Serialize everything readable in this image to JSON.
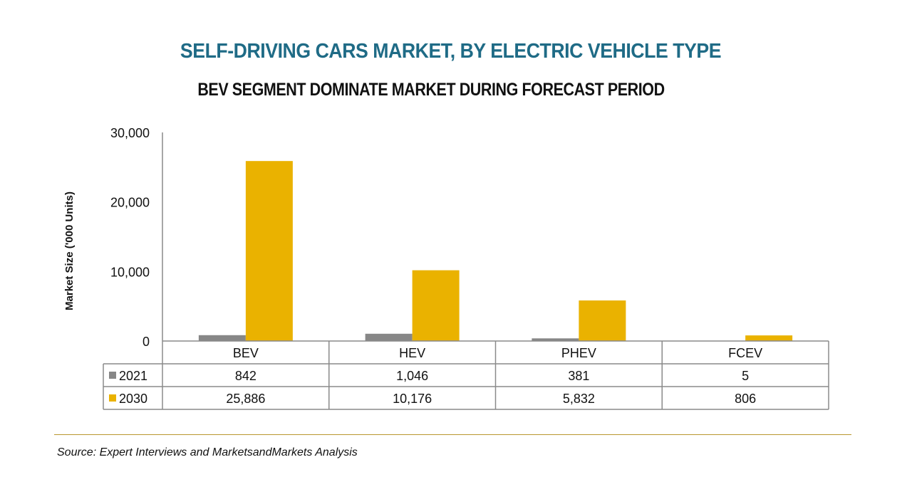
{
  "title": "SELF-DRIVING CARS MARKET, BY ELECTRIC VEHICLE TYPE",
  "subtitle": "BEV SEGMENT DOMINATE MARKET DURING FORECAST PERIOD",
  "source": "Source: Expert Interviews and MarketsandMarkets Analysis",
  "colors": {
    "title": "#1f6b86",
    "s2021": "#878787",
    "s2030": "#eab200",
    "rule": "#b8962e"
  },
  "chart_data": {
    "type": "bar",
    "title": "SELF-DRIVING CARS MARKET, BY ELECTRIC VEHICLE TYPE",
    "subtitle": "BEV SEGMENT DOMINATE MARKET DURING FORECAST PERIOD",
    "xlabel": "",
    "ylabel": "Market Size ('000 Units)",
    "ylim": [
      0,
      30000
    ],
    "yticks": [
      0,
      10000,
      20000,
      30000
    ],
    "ytick_labels": [
      "0",
      "10,000",
      "20,000",
      "30,000"
    ],
    "grid": false,
    "legend": "data-table-left",
    "categories": [
      "BEV",
      "HEV",
      "PHEV",
      "FCEV"
    ],
    "series": [
      {
        "name": "2021",
        "values": [
          842,
          1046,
          381,
          5
        ],
        "labels": [
          "842",
          "1,046",
          "381",
          "5"
        ],
        "color": "#878787"
      },
      {
        "name": "2030",
        "values": [
          25886,
          10176,
          5832,
          806
        ],
        "labels": [
          "25,886",
          "10,176",
          "5,832",
          "806"
        ],
        "color": "#eab200"
      }
    ]
  }
}
